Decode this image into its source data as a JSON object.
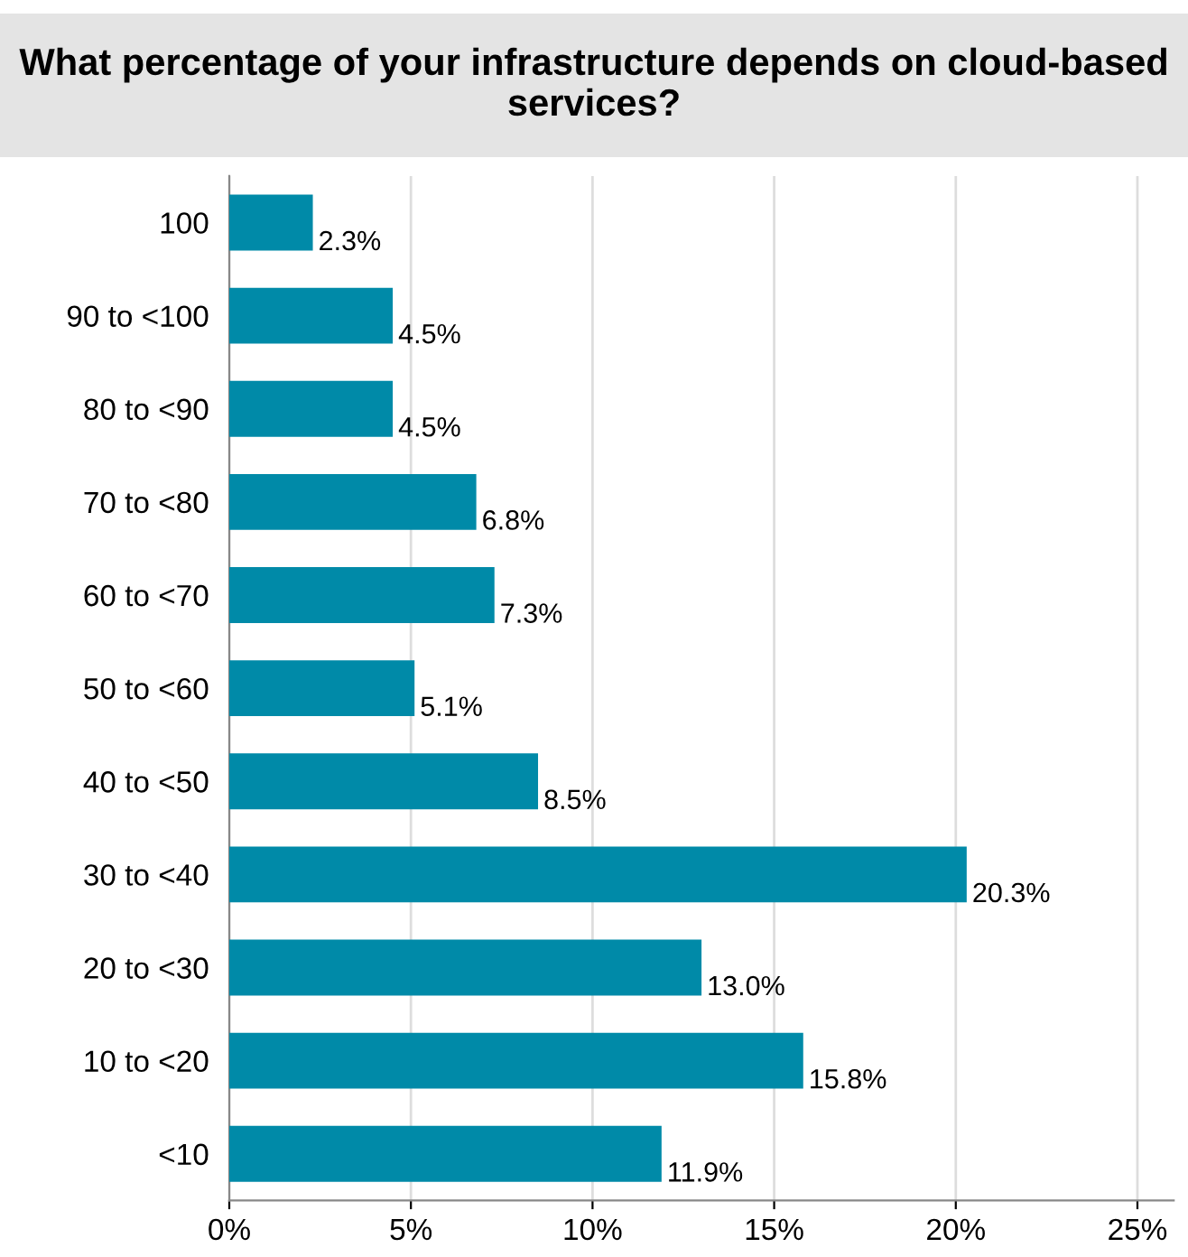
{
  "chart_data": {
    "type": "bar",
    "orientation": "horizontal",
    "title": "What percentage of your infrastructure depends on cloud-based services?",
    "categories": [
      "100",
      "90 to <100",
      "80 to <90",
      "70 to <80",
      "60 to <70",
      "50 to <60",
      "40 to <50",
      "30 to <40",
      "20 to <30",
      "10 to <20",
      "<10"
    ],
    "values": [
      2.3,
      4.5,
      4.5,
      6.8,
      7.3,
      5.1,
      8.5,
      20.3,
      13.0,
      15.8,
      11.9
    ],
    "value_labels": [
      "2.3%",
      "4.5%",
      "4.5%",
      "6.8%",
      "7.3%",
      "5.1%",
      "8.5%",
      "20.3%",
      "13.0%",
      "15.8%",
      "11.9%"
    ],
    "color": "#008aa8",
    "xlim": [
      0,
      26
    ],
    "xticks": [
      {
        "value": 0,
        "label": "0%"
      },
      {
        "value": 5,
        "label": "5%"
      },
      {
        "value": 10,
        "label": "10%"
      },
      {
        "value": 15,
        "label": "15%"
      },
      {
        "value": 20,
        "label": "20%"
      },
      {
        "value": 25,
        "label": "25%"
      }
    ],
    "grid": "x",
    "legend": false
  }
}
